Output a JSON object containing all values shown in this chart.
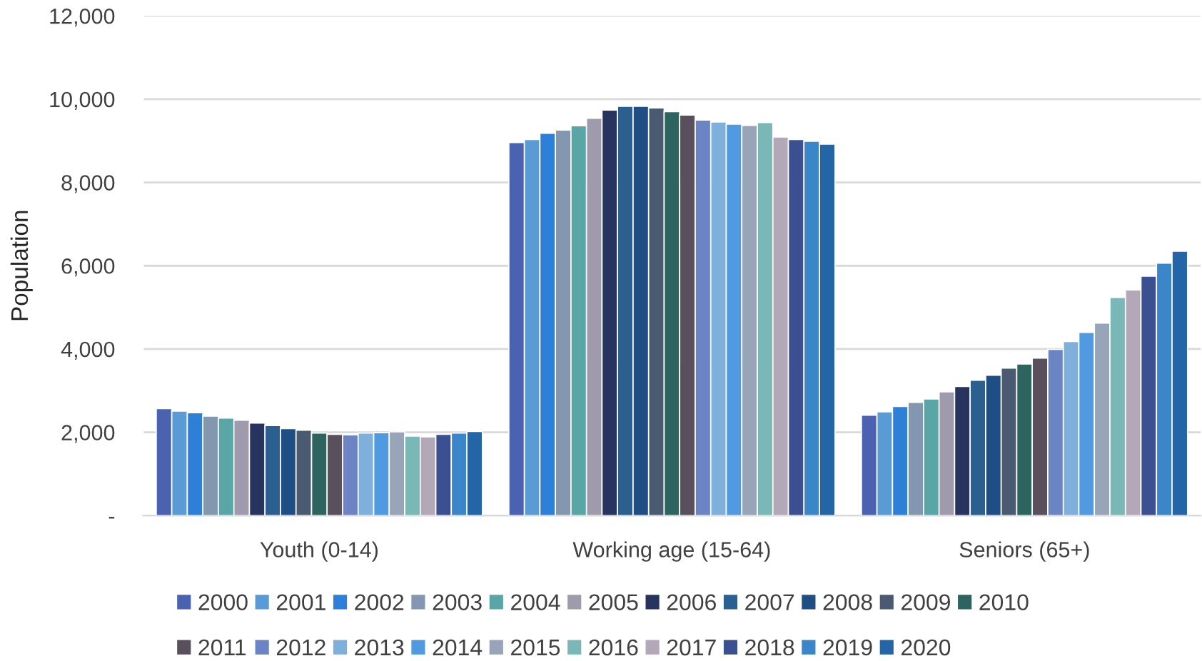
{
  "chart_data": {
    "type": "bar",
    "ylabel": "Population",
    "categories": [
      "Youth (0-14)",
      "Working age (15-64)",
      "Seniors (65+)"
    ],
    "series": [
      {
        "name": "2000",
        "color": "#4a62b0",
        "values": [
          2570,
          8960,
          2410
        ]
      },
      {
        "name": "2001",
        "color": "#5b9bd5",
        "values": [
          2510,
          9030,
          2490
        ]
      },
      {
        "name": "2002",
        "color": "#2e7fd8",
        "values": [
          2470,
          9180,
          2620
        ]
      },
      {
        "name": "2003",
        "color": "#8497b0",
        "values": [
          2390,
          9260,
          2720
        ]
      },
      {
        "name": "2004",
        "color": "#5aa6a6",
        "values": [
          2340,
          9360,
          2800
        ]
      },
      {
        "name": "2005",
        "color": "#a09aad",
        "values": [
          2290,
          9540,
          2970
        ]
      },
      {
        "name": "2006",
        "color": "#26345f",
        "values": [
          2220,
          9740,
          3100
        ]
      },
      {
        "name": "2007",
        "color": "#2a5f8f",
        "values": [
          2160,
          9830,
          3250
        ]
      },
      {
        "name": "2008",
        "color": "#1f4e85",
        "values": [
          2090,
          9830,
          3370
        ]
      },
      {
        "name": "2009",
        "color": "#4a5a70",
        "values": [
          2050,
          9790,
          3540
        ]
      },
      {
        "name": "2010",
        "color": "#2e6460",
        "values": [
          1980,
          9700,
          3640
        ]
      },
      {
        "name": "2011",
        "color": "#5a4f5c",
        "values": [
          1950,
          9620,
          3780
        ]
      },
      {
        "name": "2012",
        "color": "#6b84c4",
        "values": [
          1940,
          9500,
          3990
        ]
      },
      {
        "name": "2013",
        "color": "#7fb0dc",
        "values": [
          1980,
          9450,
          4180
        ]
      },
      {
        "name": "2014",
        "color": "#4f9ae0",
        "values": [
          1990,
          9400,
          4400
        ]
      },
      {
        "name": "2015",
        "color": "#98a4b8",
        "values": [
          2010,
          9370,
          4620
        ]
      },
      {
        "name": "2016",
        "color": "#7ab8b8",
        "values": [
          1910,
          9440,
          5240
        ]
      },
      {
        "name": "2017",
        "color": "#b2a8b8",
        "values": [
          1890,
          9090,
          5420
        ]
      },
      {
        "name": "2018",
        "color": "#3a5090",
        "values": [
          1950,
          9030,
          5750
        ]
      },
      {
        "name": "2019",
        "color": "#3a86c8",
        "values": [
          1980,
          8990,
          6060
        ]
      },
      {
        "name": "2020",
        "color": "#2465a8",
        "values": [
          2020,
          8920,
          6350
        ]
      }
    ],
    "ylim": [
      0,
      12000
    ],
    "yticks": [
      {
        "value": 0,
        "label": "-"
      },
      {
        "value": 2000,
        "label": "2,000"
      },
      {
        "value": 4000,
        "label": "4,000"
      },
      {
        "value": 6000,
        "label": "6,000"
      },
      {
        "value": 8000,
        "label": "8,000"
      },
      {
        "value": 10000,
        "label": "10,000"
      },
      {
        "value": 12000,
        "label": "12,000"
      }
    ],
    "grid": "y",
    "legend": "bottom"
  }
}
